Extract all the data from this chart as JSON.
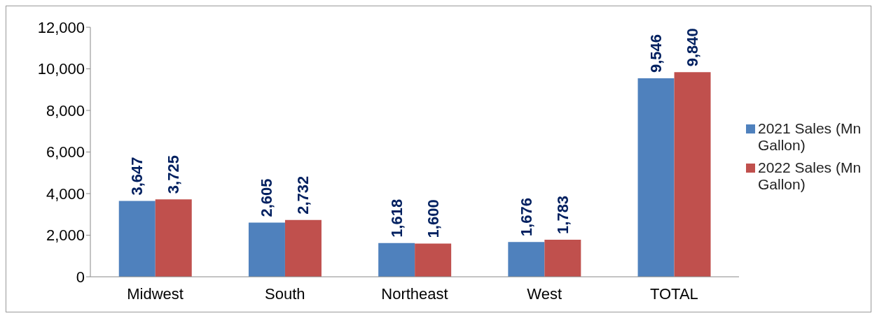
{
  "chart_data": {
    "type": "bar",
    "categories": [
      "Midwest",
      "South",
      "Northeast",
      "West",
      "TOTAL"
    ],
    "series": [
      {
        "name": "2021 Sales (Mn Gallon)",
        "color": "#4f81bd",
        "values": [
          3647,
          2605,
          1618,
          1676,
          9546
        ],
        "value_labels": [
          "3,647",
          "2,605",
          "1,618",
          "1,676",
          "9,546"
        ]
      },
      {
        "name": "2022 Sales (Mn Gallon)",
        "color": "#c0504d",
        "values": [
          3725,
          2732,
          1600,
          1783,
          9840
        ],
        "value_labels": [
          "3,725",
          "2,732",
          "1,600",
          "1,783",
          "9,840"
        ]
      }
    ],
    "ylim": [
      0,
      12000
    ],
    "yticks": [
      {
        "value": 0,
        "label": "0"
      },
      {
        "value": 2000,
        "label": "2,000"
      },
      {
        "value": 4000,
        "label": "4,000"
      },
      {
        "value": 6000,
        "label": "6,000"
      },
      {
        "value": 8000,
        "label": "8,000"
      },
      {
        "value": 10000,
        "label": "10,000"
      },
      {
        "value": 12000,
        "label": "12,000"
      }
    ],
    "grid": false,
    "legend": "right"
  }
}
